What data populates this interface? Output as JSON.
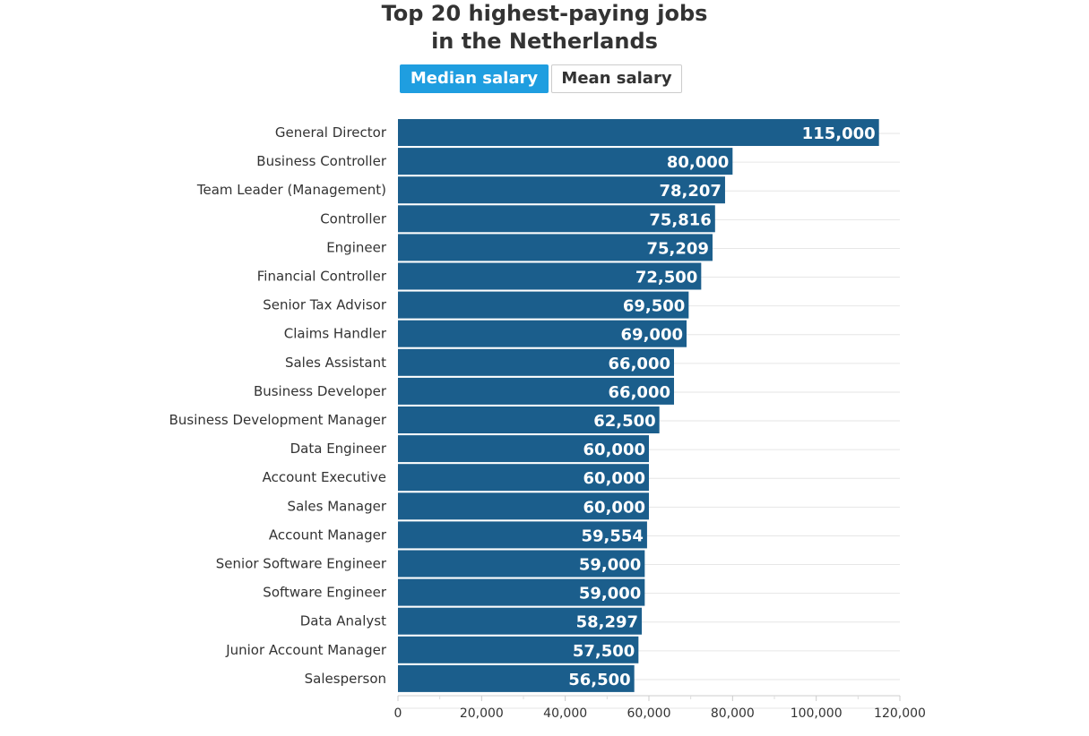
{
  "header": {
    "title_line1": "Top 20 highest-paying jobs",
    "title_line2": "in the Netherlands"
  },
  "toggles": {
    "median_label": "Median salary",
    "mean_label": "Mean salary",
    "selected": "Median salary"
  },
  "colors": {
    "bar": "#1b5e8c",
    "active_toggle": "#1f9ee0",
    "grid": "#e6e6e6"
  },
  "chart_data": {
    "type": "bar",
    "orientation": "horizontal",
    "title": "Top 20 highest-paying jobs in the Netherlands",
    "categories": [
      "General Director",
      "Business Controller",
      "Team Leader (Management)",
      "Controller",
      "Engineer",
      "Financial Controller",
      "Senior Tax Advisor",
      "Claims Handler",
      "Sales Assistant",
      "Business Developer",
      "Business Development Manager",
      "Data Engineer",
      "Account Executive",
      "Sales Manager",
      "Account Manager",
      "Senior Software Engineer",
      "Software Engineer",
      "Data Analyst",
      "Junior Account Manager",
      "Salesperson"
    ],
    "values": [
      115000,
      80000,
      78207,
      75816,
      75209,
      72500,
      69500,
      69000,
      66000,
      66000,
      62500,
      60000,
      60000,
      60000,
      59554,
      59000,
      59000,
      58297,
      57500,
      56500
    ],
    "value_labels": [
      "115,000",
      "80,000",
      "78,207",
      "75,816",
      "75,209",
      "72,500",
      "69,500",
      "69,000",
      "66,000",
      "66,000",
      "62,500",
      "60,000",
      "60,000",
      "60,000",
      "59,554",
      "59,000",
      "59,000",
      "58,297",
      "57,500",
      "56,500"
    ],
    "xlim": [
      0,
      120000
    ],
    "xticks": [
      0,
      20000,
      40000,
      60000,
      80000,
      100000,
      120000
    ],
    "xtick_labels": [
      "0",
      "20,000",
      "40,000",
      "60,000",
      "80,000",
      "100,000",
      "120,000"
    ],
    "grid": true,
    "data_labels": "inside-end"
  }
}
